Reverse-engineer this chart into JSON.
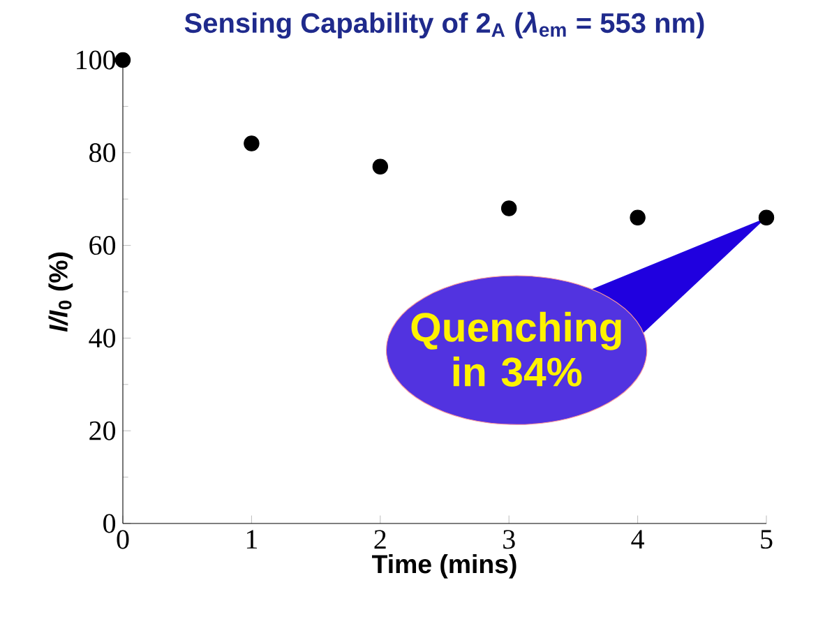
{
  "chart_data": {
    "type": "scatter",
    "title": "Sensing Capability of 2$_{A}$ (*λ*$_{em}$ = 553 nm)",
    "xlabel": "Time (mins)",
    "ylabel": "*I/I*$_{0}$ (%)",
    "x": [
      0,
      1,
      2,
      3,
      4,
      5
    ],
    "values": [
      100,
      82,
      77,
      68,
      66,
      66
    ],
    "color": "#000000",
    "marker": "circle",
    "xlim": [
      0,
      5
    ],
    "xticks": [
      0,
      1,
      2,
      3,
      4,
      5
    ],
    "ylim": [
      0,
      100
    ],
    "yticks": [
      0,
      20,
      40,
      60,
      80,
      100
    ],
    "grid": false,
    "annotations": [
      "Quenching in 34%"
    ]
  }
}
